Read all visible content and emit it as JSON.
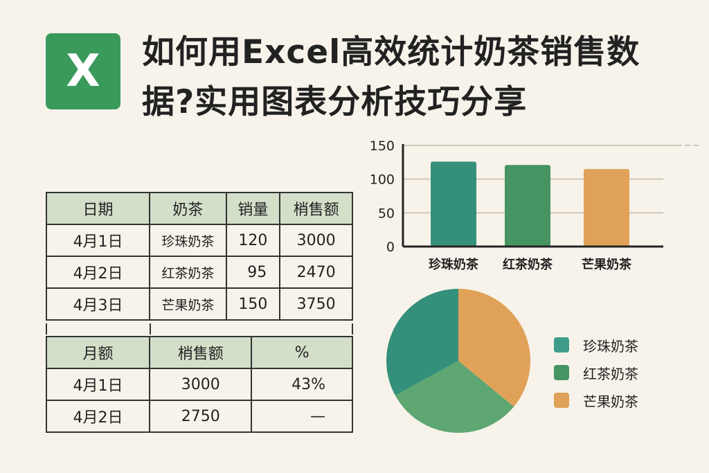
{
  "logo": {
    "letter": "X",
    "color": "#3a9a5c"
  },
  "title": "如何用Excel高效统计奶茶销售数据?实用图表分析技巧分享",
  "table1": {
    "headers": [
      "日期",
      "奶茶",
      "销量",
      "梢售额"
    ],
    "rows": [
      [
        "4月1日",
        "珍珠奶茶",
        "120",
        "3000"
      ],
      [
        "4月2日",
        "红茶奶茶",
        "95",
        "2470"
      ],
      [
        "4月3日",
        "芒果奶茶",
        "150",
        "3750"
      ]
    ]
  },
  "table2": {
    "headers": [
      "月额",
      "梢售额",
      "%"
    ],
    "rows": [
      [
        "4月1日",
        "3000",
        "43%"
      ],
      [
        "4月2日",
        "2750",
        "—"
      ]
    ]
  },
  "chart_data": [
    {
      "type": "bar",
      "categories": [
        "珍珠奶茶",
        "红茶奶茶",
        "芒果奶茶"
      ],
      "values": [
        126,
        121,
        115
      ],
      "yticks": [
        "0",
        "50",
        "100",
        "150"
      ],
      "ylim": [
        0,
        150
      ],
      "grid": true,
      "colors": [
        "#34907a",
        "#459462",
        "#e0a158"
      ]
    },
    {
      "type": "pie",
      "categories": [
        "珍珠奶茶",
        "红茶奶茶",
        "芒果奶茶"
      ],
      "values": [
        33,
        31,
        36
      ],
      "legend": "right",
      "colors": [
        "#34907a",
        "#5ea672",
        "#e0a158"
      ]
    }
  ]
}
